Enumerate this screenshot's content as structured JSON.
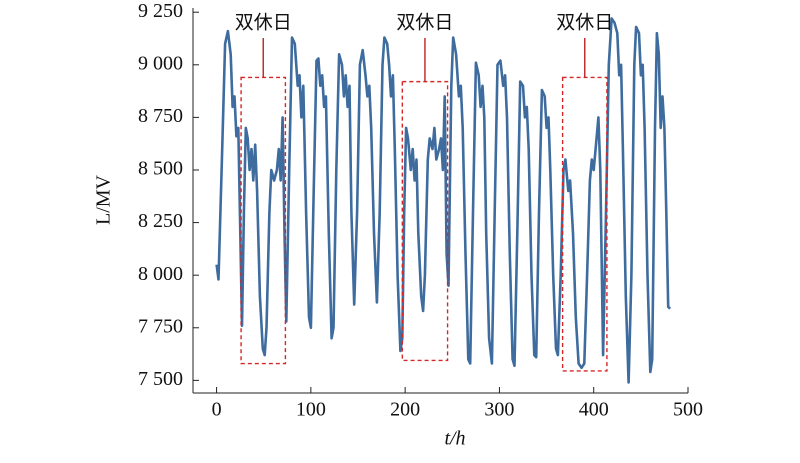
{
  "chart_data": {
    "type": "line",
    "xlabel": "t/h",
    "ylabel": "L/MV",
    "x": [
      0,
      2,
      6,
      9,
      12,
      15,
      17,
      19,
      21,
      23,
      25,
      27,
      29,
      31,
      33,
      35,
      37,
      39,
      41,
      43,
      46,
      49,
      51,
      53,
      56,
      58,
      61,
      64,
      66,
      68,
      70,
      72,
      74,
      77,
      80,
      83,
      86,
      88,
      90,
      92,
      95,
      98,
      100,
      103,
      106,
      108,
      110,
      112,
      114,
      116,
      119,
      122,
      124,
      127,
      130,
      133,
      135,
      137,
      139,
      141,
      143,
      146,
      149,
      152,
      155,
      158,
      160,
      162,
      164,
      167,
      170,
      173,
      176,
      178,
      181,
      183,
      185,
      187,
      189,
      192,
      195,
      197,
      199,
      201,
      203,
      206,
      208,
      210,
      212,
      214,
      217,
      219,
      221,
      224,
      226,
      229,
      231,
      233,
      236,
      238,
      240,
      242,
      244,
      246,
      249,
      251,
      254,
      257,
      259,
      261,
      264,
      267,
      269,
      272,
      275,
      278,
      280,
      282,
      284,
      286,
      289,
      292,
      295,
      298,
      301,
      304,
      306,
      308,
      311,
      314,
      316,
      319,
      322,
      325,
      327,
      329,
      331,
      334,
      337,
      339,
      342,
      345,
      348,
      350,
      352,
      354,
      357,
      360,
      362,
      365,
      368,
      370,
      373,
      375,
      378,
      381,
      384,
      387,
      390,
      393,
      396,
      398,
      400,
      402,
      405,
      407,
      410,
      413,
      416,
      419,
      422,
      425,
      427,
      429,
      431,
      434,
      437,
      440,
      443,
      445,
      448,
      450,
      452,
      454,
      457,
      460,
      462,
      465,
      467,
      469,
      471,
      473,
      475,
      477,
      479,
      481
    ],
    "series": [
      {
        "name": "L",
        "color": "#3e6c9e",
        "values": [
          8050,
          7980,
          8600,
          9100,
          9160,
          9050,
          8800,
          8850,
          8660,
          8700,
          8250,
          7760,
          8300,
          8700,
          8650,
          8500,
          8600,
          8450,
          8620,
          8400,
          7900,
          7650,
          7620,
          7750,
          8300,
          8500,
          8450,
          8500,
          8600,
          8450,
          8750,
          8200,
          7780,
          8500,
          9130,
          9100,
          8900,
          8950,
          8750,
          8900,
          8300,
          7800,
          7750,
          8400,
          9020,
          9030,
          8900,
          8950,
          8800,
          8850,
          8200,
          7700,
          7750,
          8500,
          9050,
          9000,
          8850,
          8950,
          8800,
          8900,
          8300,
          7860,
          8300,
          9000,
          9070,
          8950,
          8850,
          8900,
          8700,
          8200,
          7870,
          8300,
          9000,
          9130,
          9100,
          9000,
          8850,
          8950,
          8600,
          8000,
          7640,
          7700,
          8300,
          8700,
          8650,
          8500,
          8600,
          8450,
          8550,
          8200,
          7900,
          7830,
          8000,
          8550,
          8650,
          8600,
          8700,
          8550,
          8600,
          8650,
          8500,
          8850,
          8100,
          7950,
          8900,
          9130,
          9050,
          8850,
          8900,
          8700,
          8100,
          7600,
          7580,
          8300,
          9010,
          8950,
          8800,
          8900,
          8750,
          8200,
          7700,
          7580,
          8300,
          9000,
          9020,
          8900,
          8950,
          8750,
          8100,
          7600,
          7570,
          8200,
          8920,
          8900,
          8750,
          8800,
          8600,
          8000,
          7620,
          7610,
          8300,
          8880,
          8850,
          8700,
          8750,
          8500,
          8000,
          7650,
          7620,
          8000,
          8500,
          8550,
          8400,
          8450,
          8200,
          7800,
          7580,
          7560,
          7580,
          8000,
          8450,
          8550,
          8500,
          8600,
          8750,
          8500,
          7620,
          8300,
          9000,
          9220,
          9200,
          9150,
          8950,
          9000,
          8600,
          7900,
          7490,
          8000,
          9000,
          9180,
          9150,
          8950,
          9000,
          8700,
          8000,
          7540,
          7600,
          8700,
          9150,
          9050,
          8700,
          8850,
          8700,
          8300,
          7850,
          7840
        ]
      }
    ],
    "xlim": [
      -25,
      500
    ],
    "ylim": [
      7440,
      9270
    ],
    "xticks": [
      0,
      100,
      200,
      300,
      400,
      500
    ],
    "yticks": [
      {
        "value": 7500,
        "label": "7 500"
      },
      {
        "value": 7750,
        "label": "7 750"
      },
      {
        "value": 8000,
        "label": "8 000"
      },
      {
        "value": 8250,
        "label": "8 250"
      },
      {
        "value": 8500,
        "label": "8 500"
      },
      {
        "value": 8750,
        "label": "8 750"
      },
      {
        "value": 9000,
        "label": "9 000"
      },
      {
        "value": 9250,
        "label": "9 250"
      }
    ],
    "annotations": [
      {
        "text": "双休日",
        "x": [
          26,
          73
        ],
        "y": [
          7580,
          8940
        ]
      },
      {
        "text": "双休日",
        "x": [
          197,
          245
        ],
        "y": [
          7595,
          8920
        ]
      },
      {
        "text": "双休日",
        "x": [
          367,
          414
        ],
        "y": [
          7545,
          8940
        ]
      }
    ]
  }
}
